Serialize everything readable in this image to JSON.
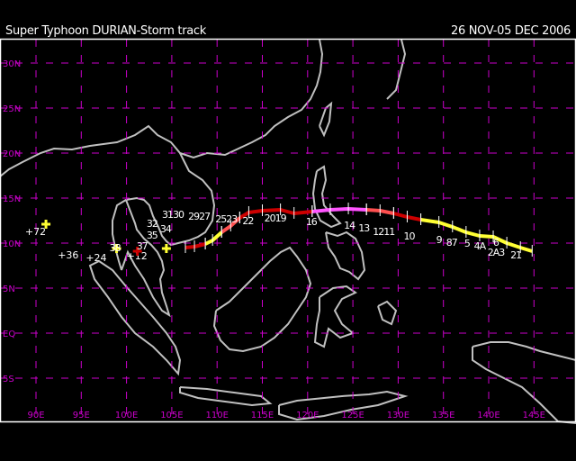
{
  "header": {
    "title": "Super Typhoon DURIAN-Storm track",
    "date_range": "26 NOV-05 DEC 2006"
  },
  "map": {
    "lon_labels": [
      "90E",
      "95E",
      "100E",
      "105E",
      "110E",
      "115E",
      "120E",
      "125E",
      "130E",
      "135E",
      "140E",
      "145E"
    ],
    "lon_values": [
      90,
      95,
      100,
      105,
      110,
      115,
      120,
      125,
      130,
      135,
      140,
      145
    ],
    "lat_labels": [
      "30N",
      "25N",
      "20N",
      "15N",
      "10N",
      "5N",
      "EQ",
      "5S"
    ],
    "lat_values": [
      30,
      25,
      20,
      15,
      10,
      5,
      0,
      -5
    ],
    "colors": {
      "background": "#000000",
      "grid": "#cc00cc",
      "coast": "#c0c0c0",
      "frame": "#ffffff",
      "yellow": "#ffff33",
      "red": "#cc0000",
      "light_red": "#ff5050",
      "magenta": "#ff55ff"
    },
    "track_segments": [
      {
        "color": "#ffff33",
        "points": [
          [
            144.8,
            9.1
          ],
          [
            143.5,
            9.5
          ],
          [
            142,
            10
          ],
          [
            140.5,
            10.7
          ],
          [
            139,
            10.8
          ],
          [
            137.5,
            11.2
          ],
          [
            136,
            11.8
          ],
          [
            134.5,
            12.3
          ],
          [
            132.5,
            12.6
          ]
        ]
      },
      {
        "color": "#cc0000",
        "points": [
          [
            132.5,
            12.6
          ],
          [
            131,
            12.9
          ],
          [
            129.5,
            13.3
          ]
        ]
      },
      {
        "color": "#ff5050",
        "points": [
          [
            129.5,
            13.3
          ],
          [
            128,
            13.6
          ],
          [
            126.5,
            13.7
          ]
        ]
      },
      {
        "color": "#ff55ff",
        "points": [
          [
            126.5,
            13.7
          ],
          [
            124.5,
            13.8
          ],
          [
            122.5,
            13.7
          ],
          [
            120.5,
            13.5
          ]
        ]
      },
      {
        "color": "#cc0000",
        "points": [
          [
            120.5,
            13.5
          ],
          [
            118.5,
            13.3
          ],
          [
            117,
            13.7
          ],
          [
            115,
            13.6
          ],
          [
            113.5,
            13.4
          ],
          [
            112.5,
            12.8
          ]
        ]
      },
      {
        "color": "#ff5050",
        "points": [
          [
            112.5,
            12.8
          ],
          [
            111.5,
            11.9
          ],
          [
            110.5,
            11.2
          ]
        ]
      },
      {
        "color": "#ffff33",
        "points": [
          [
            110.5,
            11.2
          ],
          [
            109.5,
            10.3
          ],
          [
            108.7,
            9.9
          ]
        ]
      },
      {
        "color": "#cc0000",
        "points": [
          [
            108.7,
            9.9
          ],
          [
            107.5,
            9.6
          ],
          [
            106.5,
            9.5
          ]
        ]
      }
    ],
    "track_labels": [
      {
        "text": "21",
        "lon": 143,
        "lat": 8.3
      },
      {
        "text": "2A3",
        "lon": 140.8,
        "lat": 8.6
      },
      {
        "text": "4A",
        "lon": 139,
        "lat": 9.3
      },
      {
        "text": "5",
        "lon": 137.6,
        "lat": 9.6
      },
      {
        "text": "6",
        "lon": 138.4,
        "lat": 9.7
      },
      {
        "text": "87",
        "lon": 136.7,
        "lat": 9.7
      },
      {
        "text": "9",
        "lon": 134.5,
        "lat": 10
      },
      {
        "text": "10",
        "lon": 131.2,
        "lat": 10.4
      },
      {
        "text": "1211",
        "lon": 128.4,
        "lat": 10.9
      },
      {
        "text": "13",
        "lon": 127,
        "lat": 11.3
      },
      {
        "text": "14",
        "lon": 125.4,
        "lat": 11.6
      },
      {
        "text": "16",
        "lon": 120.4,
        "lat": 12
      },
      {
        "text": "2019",
        "lon": 116.4,
        "lat": 12.4
      },
      {
        "text": "22",
        "lon": 113.4,
        "lat": 12.1
      },
      {
        "text": "2523",
        "lon": 111,
        "lat": 12.3
      },
      {
        "text": "2927",
        "lon": 108.8,
        "lat": 12.6
      },
      {
        "text": "3130",
        "lon": 107.5,
        "lat": 12.8
      },
      {
        "text": "32",
        "lon": 105.2,
        "lat": 11.8
      },
      {
        "text": "34",
        "lon": 104.3,
        "lat": 11.2
      },
      {
        "text": "35",
        "lon": 103.6,
        "lat": 10.5
      },
      {
        "text": "37",
        "lon": 101.7,
        "lat": 9.3
      },
      {
        "text": "38",
        "lon": 100.3,
        "lat": 9.1
      }
    ],
    "forecast_points": [
      {
        "label": "+12",
        "lon": 104.4,
        "lat": 9.4,
        "color": "#ffff33",
        "label_lon": 100,
        "label_lat": 8.2
      },
      {
        "label": "+24",
        "lon": 101.2,
        "lat": 9.1,
        "color": "#cc0000",
        "label_lon": 95.5,
        "label_lat": 8.0
      },
      {
        "label": "+36",
        "lon": 98.9,
        "lat": 9.4,
        "color": "#ffff33",
        "label_lon": 93.2,
        "label_lat": 8.3
      },
      {
        "label": "+72",
        "lon": 91.1,
        "lat": 12.1,
        "color": "#ffff33",
        "label_lon": 88.8,
        "label_lat": 10.9
      }
    ]
  }
}
